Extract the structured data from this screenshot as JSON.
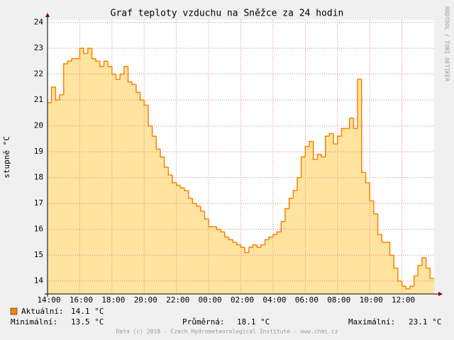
{
  "chart_data": {
    "type": "step-area",
    "title": "Graf teploty vzduchu na Sněžce za 24 hodin",
    "y_label": "stupně °C",
    "watermark": "RRDTOOL / TOBI OETIKER",
    "footer": "Data (c) 2018 - Czech Hydrometeorological Institute - www.chmi.cz",
    "color": "#ff8000",
    "fill": "#ffe4a0",
    "grid": true,
    "ylim": [
      13.5,
      24.1
    ],
    "yticks": [
      14,
      15,
      16,
      17,
      18,
      19,
      20,
      21,
      22,
      23,
      24
    ],
    "xticks": [
      "14:00",
      "16:00",
      "18:00",
      "20:00",
      "22:00",
      "00:00",
      "02:00",
      "04:00",
      "06:00",
      "08:00",
      "10:00",
      "12:00"
    ],
    "x": [
      "14:00",
      "14:15",
      "14:30",
      "14:45",
      "15:00",
      "15:15",
      "15:30",
      "15:45",
      "16:00",
      "16:15",
      "16:30",
      "16:45",
      "17:00",
      "17:15",
      "17:30",
      "17:45",
      "18:00",
      "18:15",
      "18:30",
      "18:45",
      "19:00",
      "19:15",
      "19:30",
      "19:45",
      "20:00",
      "20:15",
      "20:30",
      "20:45",
      "21:00",
      "21:15",
      "21:30",
      "21:45",
      "22:00",
      "22:15",
      "22:30",
      "22:45",
      "23:00",
      "23:15",
      "23:30",
      "23:45",
      "00:00",
      "00:15",
      "00:30",
      "00:45",
      "01:00",
      "01:15",
      "01:30",
      "01:45",
      "02:00",
      "02:15",
      "02:30",
      "02:45",
      "03:00",
      "03:15",
      "03:30",
      "03:45",
      "04:00",
      "04:15",
      "04:30",
      "04:45",
      "05:00",
      "05:15",
      "05:30",
      "05:45",
      "06:00",
      "06:15",
      "06:30",
      "06:45",
      "07:00",
      "07:15",
      "07:30",
      "07:45",
      "08:00",
      "08:15",
      "08:30",
      "08:45",
      "09:00",
      "09:15",
      "09:30",
      "09:45",
      "10:00",
      "10:15",
      "10:30",
      "10:45",
      "11:00",
      "11:15",
      "11:30",
      "11:45",
      "12:00",
      "12:15",
      "12:30",
      "12:45",
      "13:00",
      "13:15",
      "13:30",
      "13:45"
    ],
    "values": [
      20.9,
      21.5,
      21.0,
      21.2,
      22.4,
      22.5,
      22.6,
      22.6,
      23.0,
      22.8,
      23.0,
      22.6,
      22.5,
      22.3,
      22.5,
      22.3,
      22.0,
      21.8,
      22.0,
      22.3,
      21.7,
      21.6,
      21.3,
      21.0,
      20.8,
      20.0,
      19.6,
      19.1,
      18.8,
      18.4,
      18.1,
      17.8,
      17.7,
      17.6,
      17.5,
      17.2,
      17.0,
      16.9,
      16.7,
      16.4,
      16.1,
      16.1,
      16.0,
      15.9,
      15.7,
      15.6,
      15.5,
      15.4,
      15.3,
      15.1,
      15.3,
      15.4,
      15.3,
      15.4,
      15.6,
      15.7,
      15.8,
      15.9,
      16.3,
      16.8,
      17.2,
      17.5,
      18.0,
      18.8,
      19.2,
      19.4,
      18.7,
      18.9,
      18.8,
      19.6,
      19.7,
      19.3,
      19.6,
      19.9,
      19.9,
      20.3,
      19.9,
      21.8,
      18.2,
      17.8,
      17.1,
      16.6,
      15.8,
      15.5,
      15.5,
      15.0,
      14.5,
      14.0,
      13.8,
      13.7,
      13.8,
      14.2,
      14.6,
      14.9,
      14.5,
      14.1
    ],
    "legend": [
      {
        "label": "Aktuální:",
        "value": "14.1 °C"
      },
      {
        "label": "Minimální:",
        "value": "13.5 °C"
      },
      {
        "label": "Průměrná:",
        "value": "18.1 °C"
      },
      {
        "label": "Maximální:",
        "value": "23.1 °C"
      }
    ]
  }
}
